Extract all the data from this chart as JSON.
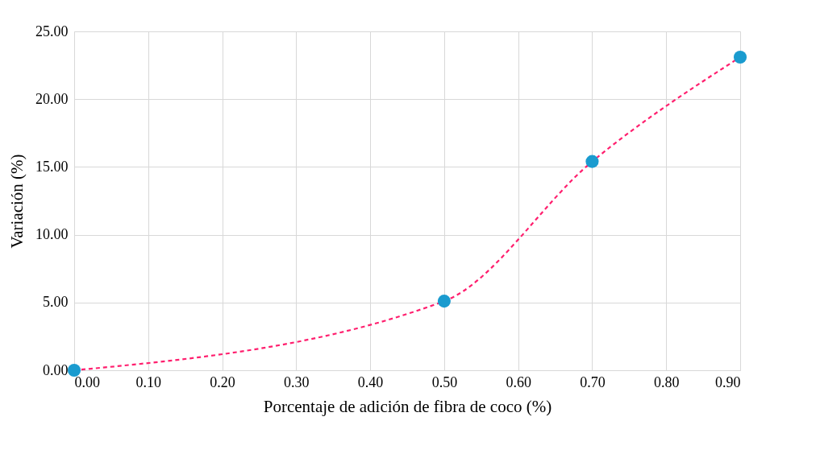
{
  "chart_data": {
    "type": "line",
    "xlabel": "Porcentaje de adición de fibra de coco (%)",
    "ylabel": "Variación (%)",
    "x": [
      0,
      0.5,
      0.7,
      0.9
    ],
    "series": [
      {
        "color": "#ff1f6e",
        "marker": "none",
        "values": [
          0,
          5.1,
          15.4,
          23.1
        ]
      },
      {
        "type": "scatter",
        "marker": "circle",
        "color": "#1a9bcf",
        "values": [
          0,
          5.1,
          15.4,
          23.1
        ]
      }
    ],
    "line_style": "dashed",
    "grid": true,
    "xlim": [
      0,
      0.9
    ],
    "xticks": [
      {
        "value": 0,
        "label": "0.00"
      },
      {
        "value": 0.1,
        "label": "0.10"
      },
      {
        "value": 0.2,
        "label": "0.20"
      },
      {
        "value": 0.3,
        "label": "0.30"
      },
      {
        "value": 0.4,
        "label": "0.40"
      },
      {
        "value": 0.5,
        "label": "0.50"
      },
      {
        "value": 0.6,
        "label": "0.60"
      },
      {
        "value": 0.7,
        "label": "0.70"
      },
      {
        "value": 0.8,
        "label": "0.80"
      },
      {
        "value": 0.9,
        "label": "0.90"
      }
    ],
    "ylim": [
      0,
      25
    ],
    "yticks": [
      {
        "value": 0,
        "label": "0.00"
      },
      {
        "value": 5,
        "label": "5.00"
      },
      {
        "value": 10,
        "label": "10.00"
      },
      {
        "value": 15,
        "label": "15.00"
      },
      {
        "value": 20,
        "label": "20.00"
      },
      {
        "value": 25,
        "label": "25.00"
      }
    ]
  }
}
